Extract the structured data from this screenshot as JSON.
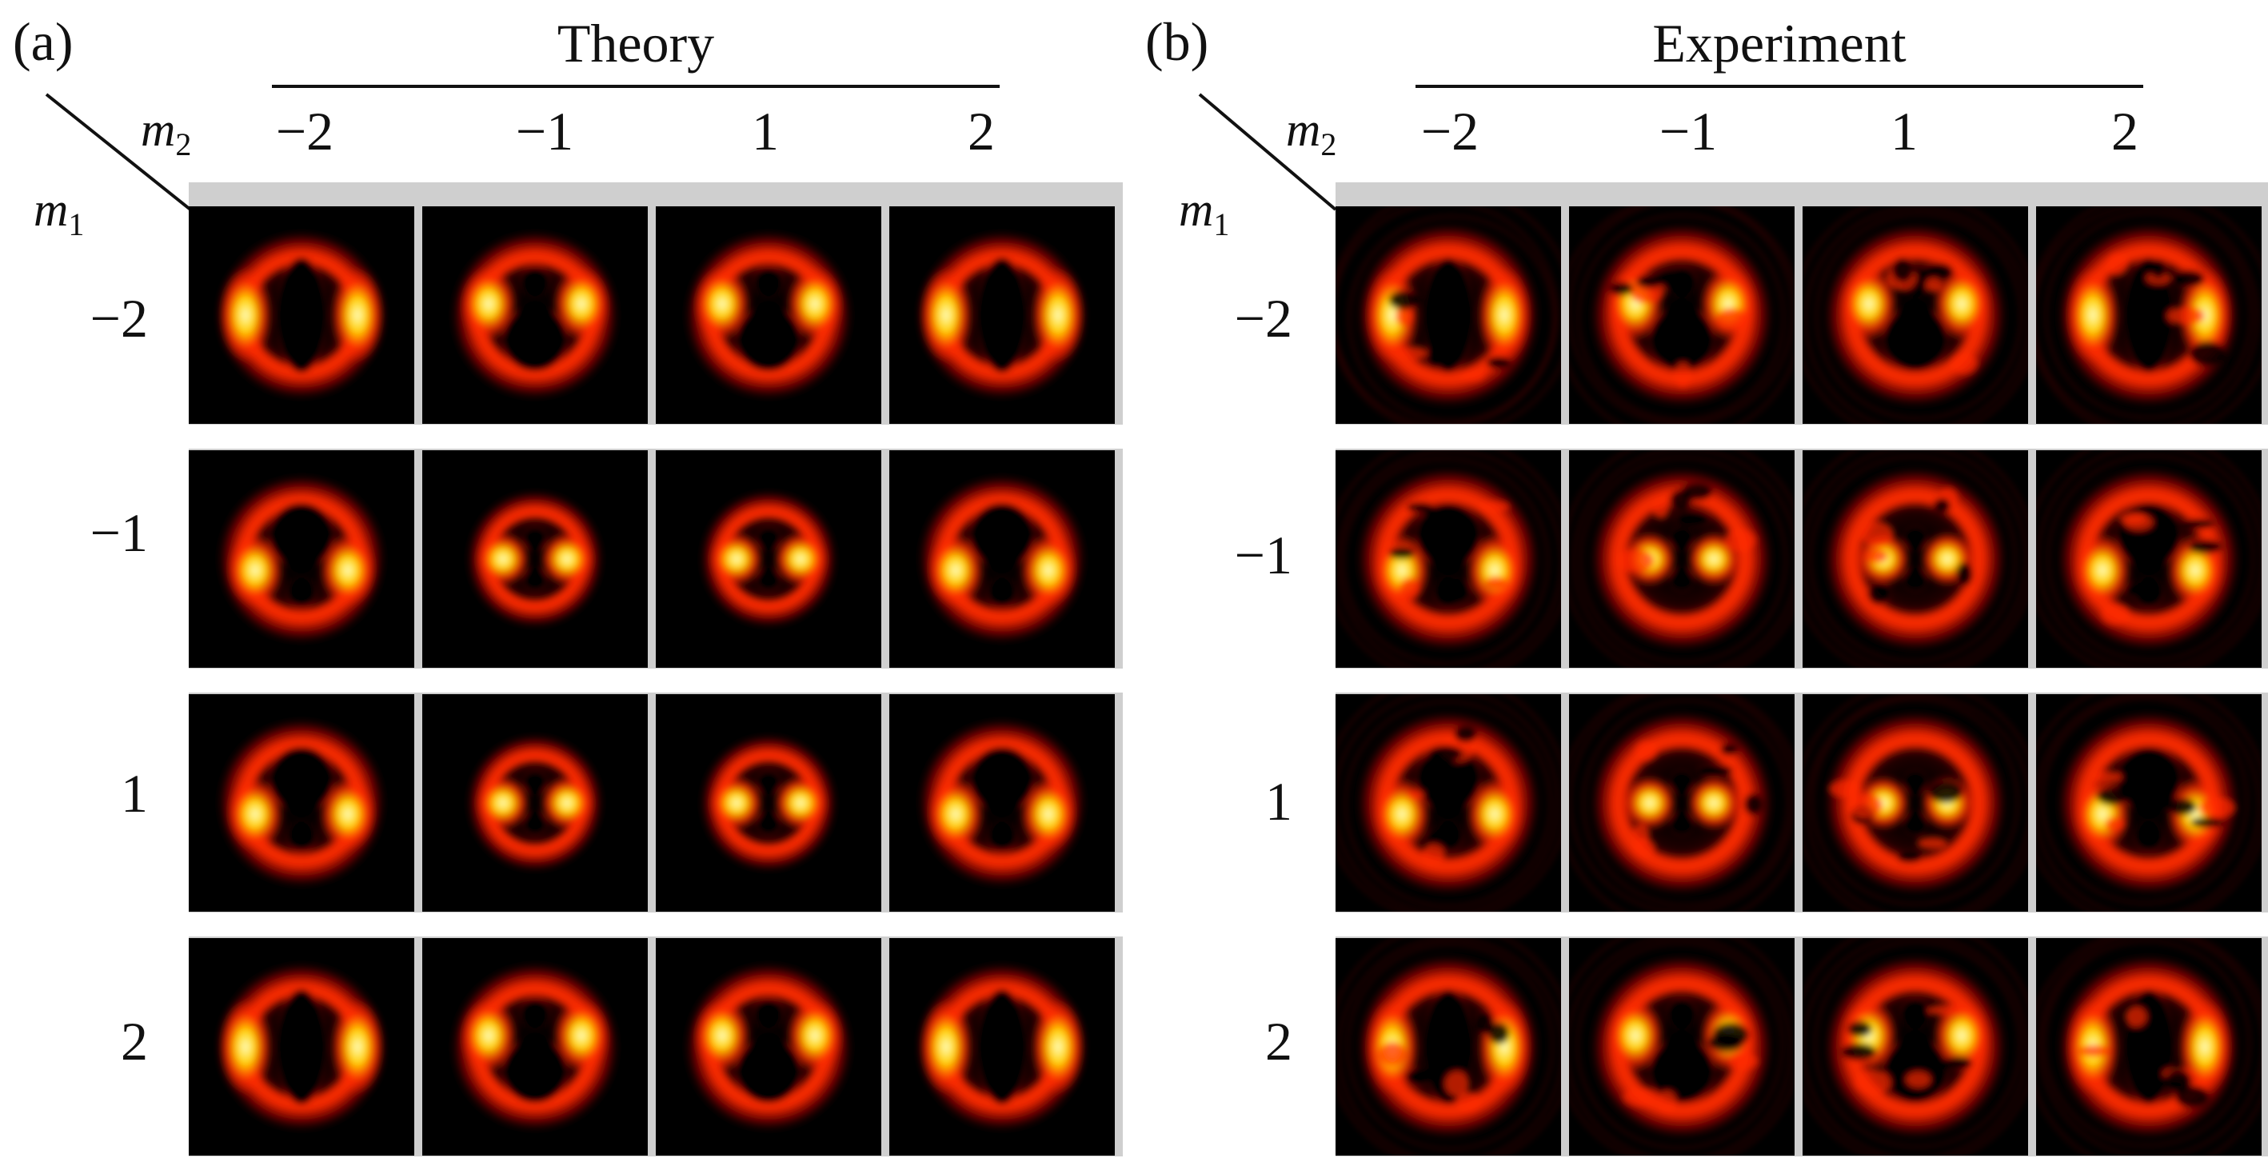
{
  "figure": {
    "panels": [
      {
        "id": "a",
        "label": "(a)",
        "title": "Theory",
        "m2_symbol": "m",
        "m2_sub": "2",
        "m1_symbol": "m",
        "m1_sub": "1",
        "columns": [
          "−2",
          "−1",
          "1",
          "2"
        ],
        "rows": [
          "−2",
          "−1",
          "1",
          "2"
        ]
      },
      {
        "id": "b",
        "label": "(b)",
        "title": "Experiment",
        "m2_symbol": "m",
        "m2_sub": "2",
        "m1_symbol": "m",
        "m1_sub": "1",
        "columns": [
          "−2",
          "−1",
          "1",
          "2"
        ],
        "rows": [
          "−2",
          "−1",
          "1",
          "2"
        ]
      }
    ],
    "colors": {
      "background": "#000000",
      "ring_dark": "#8a0000",
      "ring_mid": "#ff2a00",
      "ring_bright": "#ffd000",
      "lobe_core": "#ffffc8",
      "frame": "#cfcfcf"
    }
  }
}
